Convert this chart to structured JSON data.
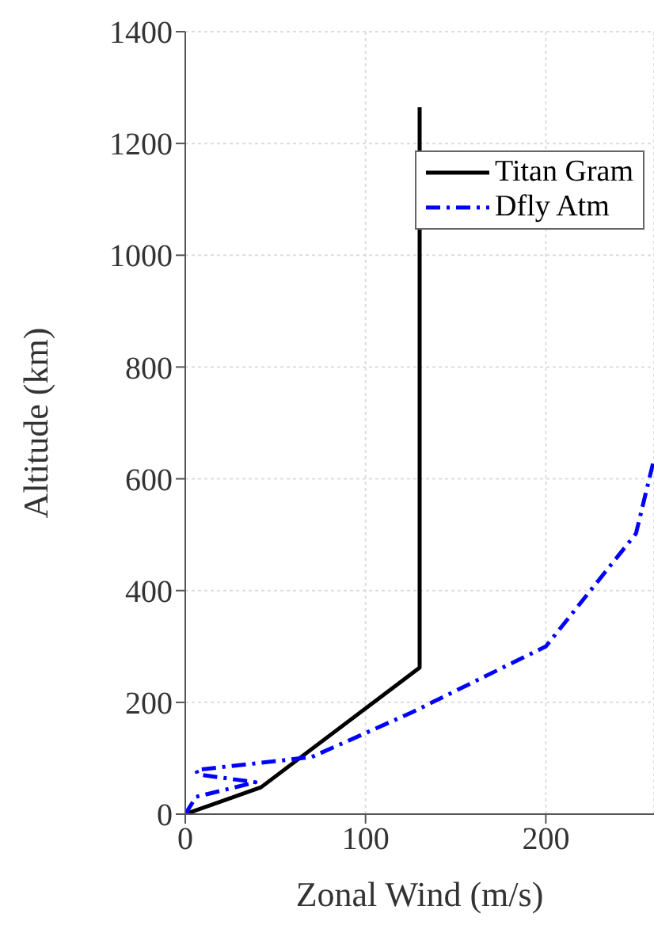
{
  "chart_data": {
    "type": "line",
    "xlabel": "Zonal Wind (m/s)",
    "ylabel": "Altitude (km)",
    "xlim": [
      0,
      260
    ],
    "xticks": [
      0,
      100,
      200
    ],
    "ylim": [
      0,
      1400
    ],
    "yticks": [
      0,
      200,
      400,
      600,
      800,
      1000,
      1200,
      1400
    ],
    "grid": true,
    "legend": "top right",
    "marker": "none",
    "series": [
      {
        "name": "Titan Gram",
        "color": "#000000",
        "line_style": "solid",
        "x": [
          0,
          42,
          130,
          130
        ],
        "values": [
          0,
          48,
          262,
          1265
        ]
      },
      {
        "name": "Dfly Atm",
        "color": "#0000ff",
        "line_style": "dashed",
        "x": [
          0,
          6,
          39,
          7,
          6,
          70,
          125,
          200,
          250,
          260
        ],
        "values": [
          0,
          31,
          57,
          71,
          79,
          102,
          181,
          300,
          502,
          635
        ]
      }
    ]
  }
}
